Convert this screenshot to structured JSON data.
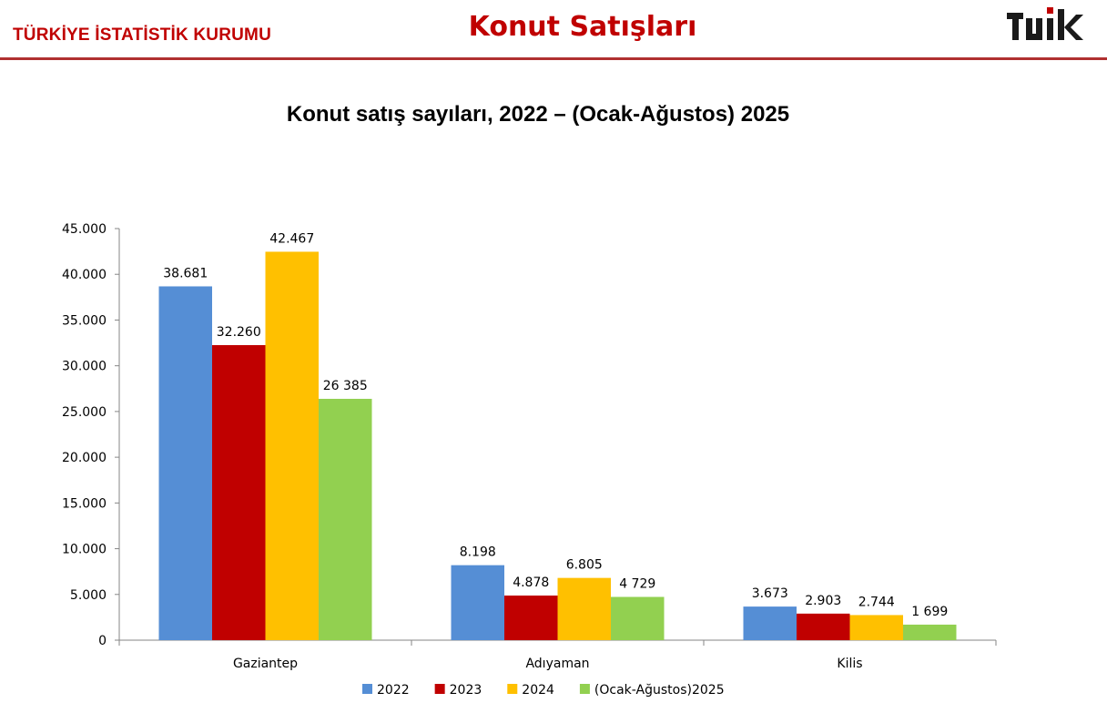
{
  "header": {
    "org_name": "TÜRKİYE İSTATİSTİK KURUMU",
    "page_title": "Konut Satışları",
    "logo_text": "TÜİK",
    "accent_color": "#c00000"
  },
  "chart_data": {
    "type": "bar",
    "title": "Konut satış sayıları, 2022 – (Ocak-Ağustos) 2025",
    "xlabel": "",
    "ylabel": "",
    "ylim": [
      0,
      45000
    ],
    "ytick_labels": [
      "0",
      "5.000",
      "10.000",
      "15.000",
      "20.000",
      "25.000",
      "30.000",
      "35.000",
      "40.000",
      "45.000"
    ],
    "categories": [
      "Gaziantep",
      "Adıyaman",
      "Kilis"
    ],
    "series": [
      {
        "name": "2022",
        "color": "#558ed5",
        "values": [
          38681,
          8198,
          3673
        ],
        "labels": [
          "38.681",
          "8.198",
          "3.673"
        ]
      },
      {
        "name": "2023",
        "color": "#c00000",
        "values": [
          32260,
          4878,
          2903
        ],
        "labels": [
          "32.260",
          "4.878",
          "2.903"
        ]
      },
      {
        "name": "2024",
        "color": "#ffc000",
        "values": [
          42467,
          6805,
          2744
        ],
        "labels": [
          "42.467",
          "6.805",
          "2.744"
        ]
      },
      {
        "name": "(Ocak-Ağustos)2025",
        "color": "#92d050",
        "values": [
          26385,
          4729,
          1699
        ],
        "labels": [
          "26 385",
          "4 729",
          "1 699"
        ]
      }
    ],
    "grid": false,
    "legend_position": "bottom"
  }
}
